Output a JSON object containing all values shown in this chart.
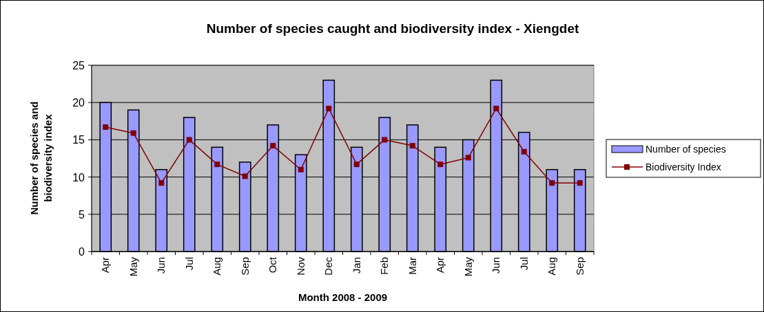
{
  "chart_data": {
    "type": "bar",
    "title": "Number of species caught and biodiversity index - Xiengdet",
    "xlabel": "Month 2008 - 2009",
    "ylabel": "Number of species and biodiversity index",
    "categories": [
      "Apr",
      "May",
      "Jun",
      "Jul",
      "Aug",
      "Sep",
      "Oct",
      "Nov",
      "Dec",
      "Jan",
      "Feb",
      "Mar",
      "Apr",
      "May",
      "Jun",
      "Jul",
      "Aug",
      "Sep"
    ],
    "series": [
      {
        "name": "Number of species",
        "color": "#9999ff",
        "values": [
          20,
          19,
          11,
          18,
          14,
          12,
          17,
          13,
          23,
          14,
          18,
          17,
          14,
          15,
          23,
          16,
          11,
          11
        ]
      },
      {
        "name": "Biodiversity Index",
        "type": "line",
        "color": "#800000",
        "marker": "square",
        "values": [
          16.7,
          15.9,
          9.2,
          15.0,
          11.7,
          10.1,
          14.2,
          11.0,
          19.2,
          11.7,
          15.0,
          14.2,
          11.7,
          12.6,
          19.2,
          13.4,
          9.2,
          9.2
        ]
      }
    ],
    "ylim": [
      0,
      25
    ],
    "yticks": [
      0,
      5,
      10,
      15,
      20,
      25
    ],
    "grid": "y",
    "legend": "right"
  }
}
